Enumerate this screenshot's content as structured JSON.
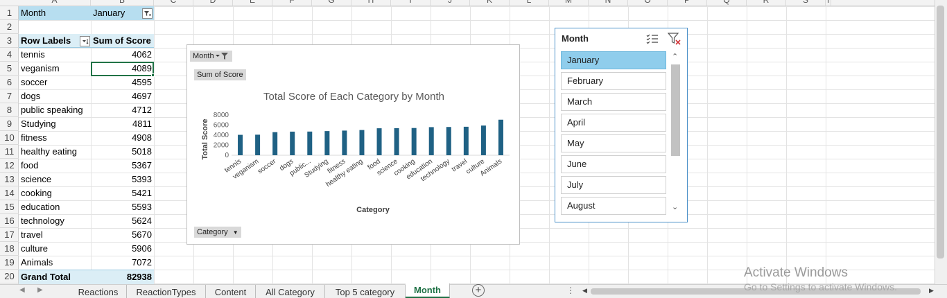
{
  "columns": [
    "A",
    "B",
    "C",
    "D",
    "E",
    "F",
    "G",
    "H",
    "I",
    "J",
    "K",
    "L",
    "M",
    "N",
    "O",
    "P",
    "Q",
    "R",
    "S",
    "T"
  ],
  "rows": [
    "1",
    "2",
    "3",
    "4",
    "5",
    "6",
    "7",
    "8",
    "9",
    "10",
    "11",
    "12",
    "13",
    "14",
    "15",
    "16",
    "17",
    "18",
    "19",
    "20"
  ],
  "filter": {
    "label": "Month",
    "value": "January"
  },
  "pivot": {
    "row_labels_header": "Row Labels",
    "sum_header": "Sum of Score",
    "items": [
      {
        "label": "tennis",
        "value": "4062"
      },
      {
        "label": "veganism",
        "value": "4089"
      },
      {
        "label": "soccer",
        "value": "4595"
      },
      {
        "label": "dogs",
        "value": "4697"
      },
      {
        "label": "public speaking",
        "value": "4712"
      },
      {
        "label": "Studying",
        "value": "4811"
      },
      {
        "label": "fitness",
        "value": "4908"
      },
      {
        "label": "healthy eating",
        "value": "5018"
      },
      {
        "label": "food",
        "value": "5367"
      },
      {
        "label": "science",
        "value": "5393"
      },
      {
        "label": "cooking",
        "value": "5421"
      },
      {
        "label": "education",
        "value": "5593"
      },
      {
        "label": "technology",
        "value": "5624"
      },
      {
        "label": "travel",
        "value": "5670"
      },
      {
        "label": "culture",
        "value": "5906"
      },
      {
        "label": "Animals",
        "value": "7072"
      }
    ],
    "grand_total_label": "Grand Total",
    "grand_total_value": "82938"
  },
  "chart": {
    "month_chip": "Month",
    "sum_chip": "Sum of Score",
    "category_chip": "Category",
    "bar_color": "#1f6184"
  },
  "chart_data": {
    "type": "bar",
    "title": "Total Score of Each Category by Month",
    "xlabel": "Category",
    "ylabel": "Total Score",
    "ylim": [
      0,
      8000
    ],
    "yticks": [
      "0",
      "2000",
      "4000",
      "6000",
      "8000"
    ],
    "categories": [
      "tennis",
      "veganism",
      "soccer",
      "dogs",
      "public...",
      "Studying",
      "fitness",
      "healthy eating",
      "food",
      "science",
      "cooking",
      "education",
      "technology",
      "travel",
      "culture",
      "Animals"
    ],
    "values": [
      4062,
      4089,
      4595,
      4697,
      4712,
      4811,
      4908,
      5018,
      5367,
      5393,
      5421,
      5593,
      5624,
      5670,
      5906,
      7072
    ]
  },
  "slicer": {
    "title": "Month",
    "items": [
      "January",
      "February",
      "March",
      "April",
      "May",
      "June",
      "July",
      "August"
    ],
    "selected": "January"
  },
  "sheet_tabs": [
    "Reactions",
    "ReactionTypes",
    "Content",
    "All Category",
    "Top 5 category",
    "Month"
  ],
  "active_tab": "Month",
  "watermark": {
    "line1": "Activate Windows",
    "line2": "Go to Settings to activate Windows."
  }
}
